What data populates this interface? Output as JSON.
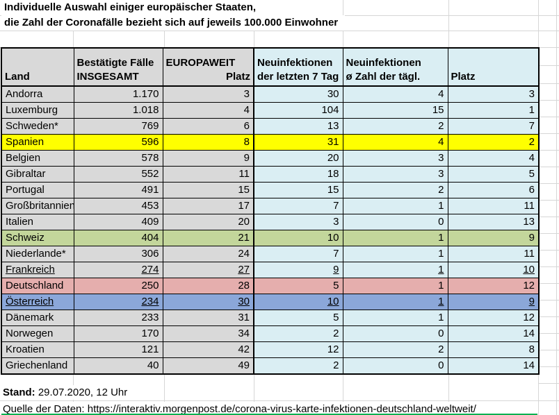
{
  "title": {
    "line1": "Individuelle Auswahl einiger europäischer Staaten,",
    "line2": "die Zahl der Coronafälle bezieht sich auf jeweils 100.000 Einwohner"
  },
  "colors": {
    "header_gray": "#d9d9d9",
    "cell_blue": "#daeef3",
    "highlight_yellow": "#ffff00",
    "highlight_green": "#c3d69b",
    "highlight_red": "#e5aead",
    "highlight_blue": "#8ba7d9",
    "grammar_green": "#00b050",
    "border_black": "#000000"
  },
  "table": {
    "headers": [
      {
        "key": "land",
        "line1": "",
        "line2": "Land"
      },
      {
        "key": "insgesamt",
        "line1": "Bestätigte Fälle",
        "line2": "INSGESAMT"
      },
      {
        "key": "europaweit-platz",
        "line1": "EUROPAWEIT",
        "line2": "Platz",
        "line2_align": "right"
      },
      {
        "key": "neuinfektionen-7-tage",
        "line1": "Neuinfektionen",
        "line2": "der letzten 7 Tag"
      },
      {
        "key": "neuinfektionen-taeglich",
        "line1": "Neuinfektionen",
        "line2": "ø Zahl der tägl."
      },
      {
        "key": "platz",
        "line1": "",
        "line2": "Platz"
      }
    ],
    "rows": [
      {
        "cells": [
          "Andorra",
          "1.170",
          "3",
          "30",
          "4",
          "3"
        ],
        "style": "default",
        "underline": false
      },
      {
        "cells": [
          "Luxemburg",
          "1.018",
          "4",
          "104",
          "15",
          "1"
        ],
        "style": "default",
        "underline": false
      },
      {
        "cells": [
          "Schweden*",
          "769",
          "6",
          "13",
          "2",
          "7"
        ],
        "style": "default",
        "underline": false
      },
      {
        "cells": [
          "Spanien",
          "596",
          "8",
          "31",
          "4",
          "2"
        ],
        "style": "yellow",
        "underline": false
      },
      {
        "cells": [
          "Belgien",
          "578",
          "9",
          "20",
          "3",
          "4"
        ],
        "style": "default",
        "underline": false
      },
      {
        "cells": [
          "Gibraltar",
          "552",
          "11",
          "18",
          "3",
          "5"
        ],
        "style": "default",
        "underline": false
      },
      {
        "cells": [
          "Portugal",
          "491",
          "15",
          "15",
          "2",
          "6"
        ],
        "style": "default",
        "underline": false
      },
      {
        "cells": [
          "Großbritannien",
          "453",
          "17",
          "7",
          "1",
          "11"
        ],
        "style": "default",
        "underline": false
      },
      {
        "cells": [
          "Italien",
          "409",
          "20",
          "3",
          "0",
          "13"
        ],
        "style": "default",
        "underline": false
      },
      {
        "cells": [
          "Schweiz",
          "404",
          "21",
          "10",
          "1",
          "9"
        ],
        "style": "green",
        "underline": false
      },
      {
        "cells": [
          "Niederlande*",
          "306",
          "24",
          "7",
          "1",
          "11"
        ],
        "style": "default",
        "underline": false
      },
      {
        "cells": [
          "Frankreich",
          "274",
          "27",
          "9",
          "1",
          "10"
        ],
        "style": "default",
        "underline": true
      },
      {
        "cells": [
          "Deutschland",
          "250",
          "28",
          "5",
          "1",
          "12"
        ],
        "style": "red",
        "underline": false
      },
      {
        "cells": [
          "Österreich",
          "234",
          "30",
          "10",
          "1",
          "9"
        ],
        "style": "blue",
        "underline": true
      },
      {
        "cells": [
          "Dänemark",
          "233",
          "31",
          "5",
          "1",
          "12"
        ],
        "style": "default",
        "underline": false
      },
      {
        "cells": [
          "Norwegen",
          "170",
          "34",
          "2",
          "0",
          "14"
        ],
        "style": "default",
        "underline": false
      },
      {
        "cells": [
          "Kroatien",
          "121",
          "42",
          "12",
          "2",
          "8"
        ],
        "style": "default",
        "underline": false
      },
      {
        "cells": [
          "Griechenland",
          "40",
          "49",
          "2",
          "0",
          "14"
        ],
        "style": "default",
        "underline": false
      }
    ]
  },
  "footer": {
    "stand_label": "Stand:",
    "stand_value": " 29.07.2020, 12 Uhr",
    "source_line": "Quelle der Daten: https://interaktiv.morgenpost.de/corona-virus-karte-infektionen-deutschland-weltweit/"
  }
}
